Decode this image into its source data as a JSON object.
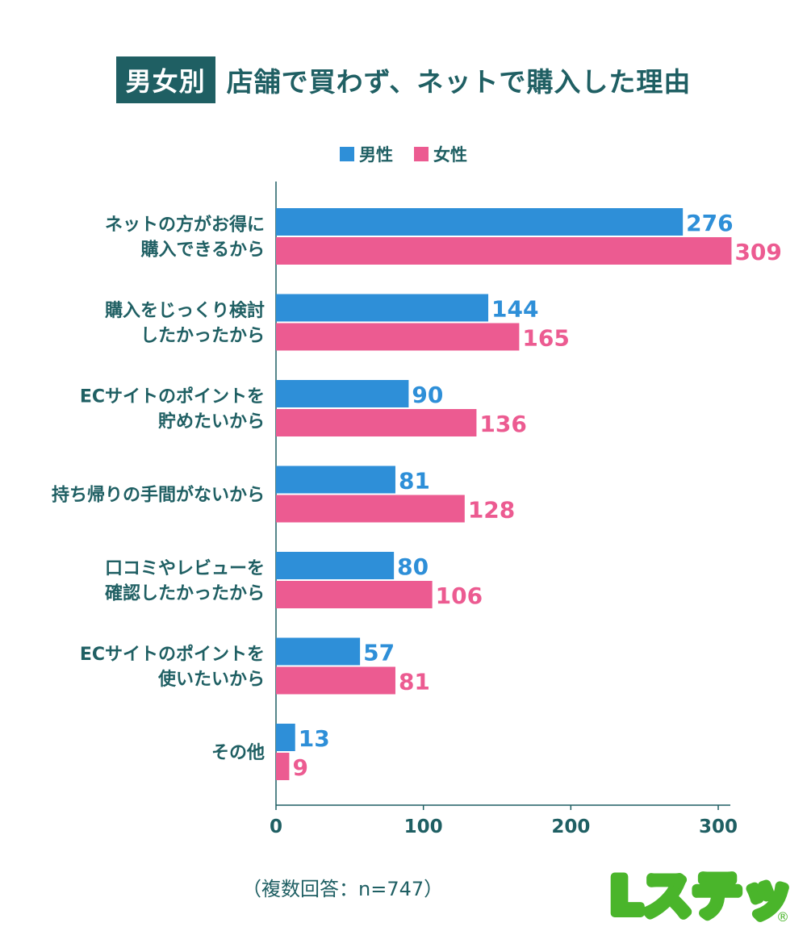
{
  "header": {
    "badge": "男女別",
    "title": "店舗で買わず、ネットで購入した理由"
  },
  "legend": [
    {
      "label": "男性",
      "color": "#2e8fd8"
    },
    {
      "label": "女性",
      "color": "#ec5b91"
    }
  ],
  "chart_data": {
    "type": "bar",
    "orientation": "horizontal",
    "categories": [
      [
        "ネットの方がお得に",
        "購入できるから"
      ],
      [
        "購入をじっくり検討",
        "したかったから"
      ],
      [
        "ECサイトのポイントを",
        "貯めたいから"
      ],
      [
        "持ち帰りの手間がないから"
      ],
      [
        "口コミやレビューを",
        "確認したかったから"
      ],
      [
        "ECサイトのポイントを",
        "使いたいから"
      ],
      [
        "その他"
      ]
    ],
    "series": [
      {
        "name": "男性",
        "color": "#2e8fd8",
        "values": [
          276,
          144,
          90,
          81,
          80,
          57,
          13
        ]
      },
      {
        "name": "女性",
        "color": "#ec5b91",
        "values": [
          309,
          165,
          136,
          128,
          106,
          81,
          9
        ]
      }
    ],
    "xlim": [
      0,
      300
    ],
    "xticks": [
      0,
      100,
      200,
      300
    ],
    "grid": false,
    "legend_position": "top-center"
  },
  "footnote": "（複数回答：n=747）",
  "logo": {
    "text": "Lステップ",
    "mark": "®"
  },
  "colors": {
    "text": "#1f5f63",
    "axis": "#1f5f63",
    "logo_green": "#4ab52b"
  }
}
